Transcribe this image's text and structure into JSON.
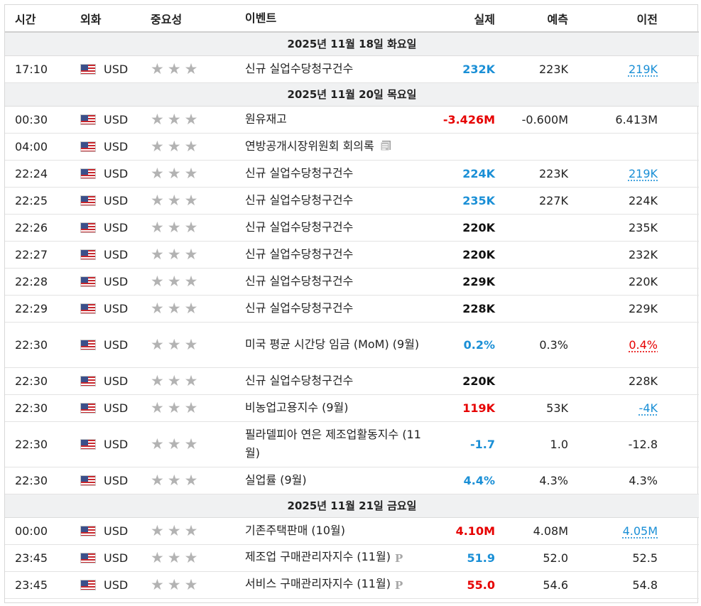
{
  "headers": {
    "time": "시간",
    "currency": "외화",
    "importance": "중요성",
    "event": "이벤트",
    "actual": "실제",
    "forecast": "예측",
    "previous": "이전"
  },
  "day1": {
    "label": "2025년 11월 18일 화요일",
    "rows": [
      {
        "time": "17:10",
        "currency": "USD",
        "event": "신규 실업수당청구건수",
        "actual": "232K",
        "forecast": "223K",
        "previous": "219K"
      }
    ]
  },
  "day2": {
    "label": "2025년 11월 20일 목요일",
    "rows": [
      {
        "time": "00:30",
        "currency": "USD",
        "event": "원유재고",
        "actual": "-3.426M",
        "forecast": "-0.600M",
        "previous": "6.413M"
      },
      {
        "time": "04:00",
        "currency": "USD",
        "event": "연방공개시장위원회 회의록",
        "actual": "",
        "forecast": "",
        "previous": ""
      },
      {
        "time": "22:24",
        "currency": "USD",
        "event": "신규 실업수당청구건수",
        "actual": "224K",
        "forecast": "223K",
        "previous": "219K"
      },
      {
        "time": "22:25",
        "currency": "USD",
        "event": "신규 실업수당청구건수",
        "actual": "235K",
        "forecast": "227K",
        "previous": "224K"
      },
      {
        "time": "22:26",
        "currency": "USD",
        "event": "신규 실업수당청구건수",
        "actual": "220K",
        "forecast": "",
        "previous": "235K"
      },
      {
        "time": "22:27",
        "currency": "USD",
        "event": "신규 실업수당청구건수",
        "actual": "220K",
        "forecast": "",
        "previous": "232K"
      },
      {
        "time": "22:28",
        "currency": "USD",
        "event": "신규 실업수당청구건수",
        "actual": "229K",
        "forecast": "",
        "previous": "220K"
      },
      {
        "time": "22:29",
        "currency": "USD",
        "event": "신규 실업수당청구건수",
        "actual": "228K",
        "forecast": "",
        "previous": "229K"
      },
      {
        "time": "22:30",
        "currency": "USD",
        "event": "미국 평균 시간당 임금 (MoM) (9월)",
        "actual": "0.2%",
        "forecast": "0.3%",
        "previous": "0.4%"
      },
      {
        "time": "22:30",
        "currency": "USD",
        "event": "신규 실업수당청구건수",
        "actual": "220K",
        "forecast": "",
        "previous": "228K"
      },
      {
        "time": "22:30",
        "currency": "USD",
        "event": "비농업고용지수 (9월)",
        "actual": "119K",
        "forecast": "53K",
        "previous": "-4K"
      },
      {
        "time": "22:30",
        "currency": "USD",
        "event": "필라델피아 연은 제조업활동지수 (11월)",
        "actual": "-1.7",
        "forecast": "1.0",
        "previous": "-12.8"
      },
      {
        "time": "22:30",
        "currency": "USD",
        "event": "실업률 (9월)",
        "actual": "4.4%",
        "forecast": "4.3%",
        "previous": "4.3%"
      }
    ]
  },
  "day3": {
    "label": "2025년 11월 21일 금요일",
    "rows": [
      {
        "time": "00:00",
        "currency": "USD",
        "event": "기존주택판매 (10월)",
        "actual": "4.10M",
        "forecast": "4.08M",
        "previous": "4.05M"
      },
      {
        "time": "23:45",
        "currency": "USD",
        "event": "제조업 구매관리자지수 (11월)",
        "actual": "51.9",
        "forecast": "52.0",
        "previous": "52.5"
      },
      {
        "time": "23:45",
        "currency": "USD",
        "event": "서비스 구매관리자지수 (11월)",
        "actual": "55.0",
        "forecast": "54.6",
        "previous": "54.8"
      }
    ]
  },
  "icons": {
    "importance": "star-icon",
    "flag": "us-flag-icon",
    "document": "document-icon",
    "preliminary": "preliminary-p-icon"
  },
  "colors": {
    "positive": "#1a8fd6",
    "negative": "#e60000",
    "neutral": "#111111",
    "star": "#b3b3b3"
  }
}
